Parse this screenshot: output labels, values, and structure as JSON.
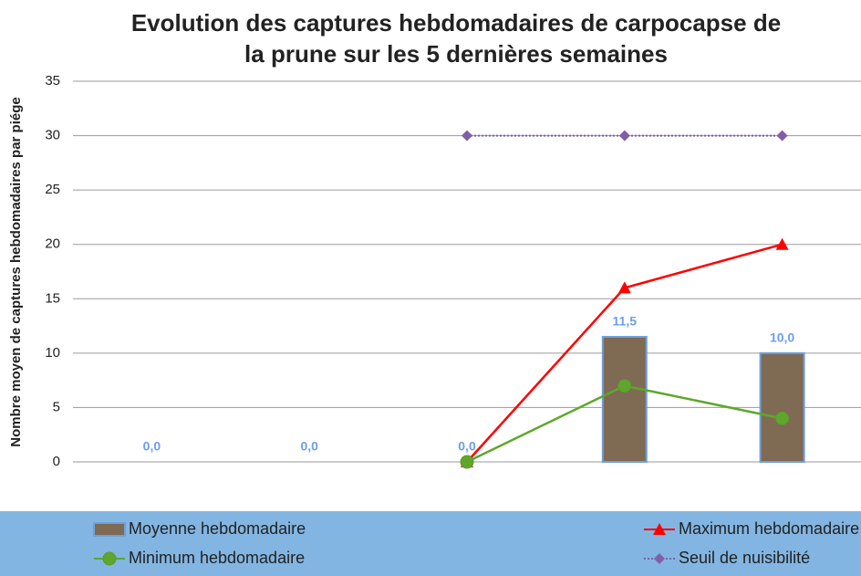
{
  "chart_data": {
    "type": "bar",
    "title": "Evolution des captures hebdomadaires de carpocapse de la prune sur les 5 dernières semaines",
    "y_label": "Nombre moyen de captures hebdomadaires par piége",
    "categories": [
      null,
      null,
      null,
      null,
      null
    ],
    "series": [
      {
        "name": "Moyenne hebdomadaire",
        "type": "bar",
        "color": "#7f6a53",
        "values": [
          0,
          0,
          0,
          11.5,
          10
        ],
        "value_labels": [
          "0,0",
          "0,0",
          "0,0",
          "11,5",
          "10,0"
        ]
      },
      {
        "name": "Maximum hebdomadaire",
        "type": "line",
        "marker": "triangle",
        "color": "#ff0000",
        "values": [
          null,
          null,
          0,
          16,
          20
        ]
      },
      {
        "name": "Minimum hebdomadaire",
        "type": "line",
        "marker": "circle",
        "color": "#5ea72c",
        "values": [
          null,
          null,
          0,
          7,
          4
        ]
      },
      {
        "name": "Seuil de nuisibilité",
        "type": "line",
        "marker": "diamond",
        "dash": "dotted",
        "color": "#7f5fa8",
        "values": [
          null,
          null,
          30,
          30,
          30
        ]
      }
    ],
    "ylim": [
      0,
      35
    ],
    "yticks": [
      0,
      5,
      10,
      15,
      20,
      25,
      30,
      35
    ],
    "grid": true,
    "legend": "bottom"
  }
}
